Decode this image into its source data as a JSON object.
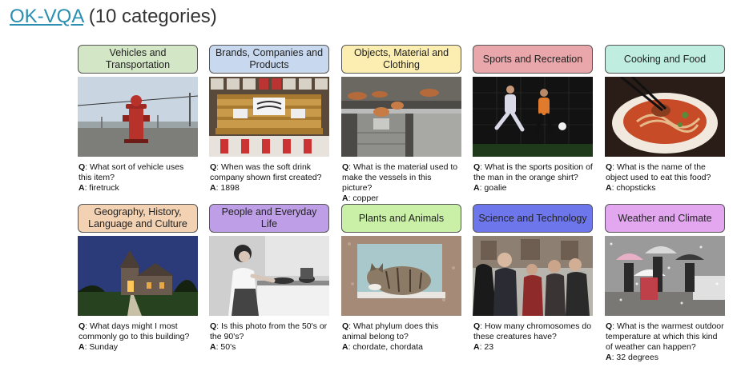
{
  "header": {
    "link": "OK-VQA",
    "suffix": " (10 categories)"
  },
  "labels": {
    "q": "Q",
    "a": "A"
  },
  "cards": [
    {
      "category": "Vehicles and Transportation",
      "color": "#d3e7c6",
      "question": ": What sort of vehicle uses this item?",
      "answer": ": firetruck"
    },
    {
      "category": "Brands, Companies and Products",
      "color": "#c8d8ef",
      "question": ": When was the soft drink company shown first created?",
      "answer": ": 1898"
    },
    {
      "category": "Objects, Material and Clothing",
      "color": "#fcedb0",
      "question": ": What is the material used to make the vessels in this picture?",
      "answer": ": copper"
    },
    {
      "category": "Sports and Recreation",
      "color": "#eaa7ab",
      "question": ": What is the sports position of the man in the orange shirt?",
      "answer": ": goalie"
    },
    {
      "category": "Cooking and Food",
      "color": "#bfeee0",
      "question": ": What is the name of the object used to eat this food?",
      "answer": ": chopsticks"
    },
    {
      "category": "Geography, History, Language and Culture",
      "color": "#f3d2b4",
      "question": ": What days might I most commonly go to this building?",
      "answer": ": Sunday"
    },
    {
      "category": "People and Everyday Life",
      "color": "#bf9ee8",
      "question": ": Is this photo from the 50's or the 90's?",
      "answer": ": 50's"
    },
    {
      "category": "Plants and Animals",
      "color": "#caf0a8",
      "question": ": What phylum does this animal belong to?",
      "answer": ": chordate, chordata"
    },
    {
      "category": "Science and Technology",
      "color": "#6d76ea",
      "question": ": How many chromosomes do these creatures have?",
      "answer": ": 23"
    },
    {
      "category": "Weather and Climate",
      "color": "#e2a7ef",
      "question": ": What is the warmest outdoor temperature at which this kind of weather can happen?",
      "answer": ": 32 degrees"
    }
  ]
}
